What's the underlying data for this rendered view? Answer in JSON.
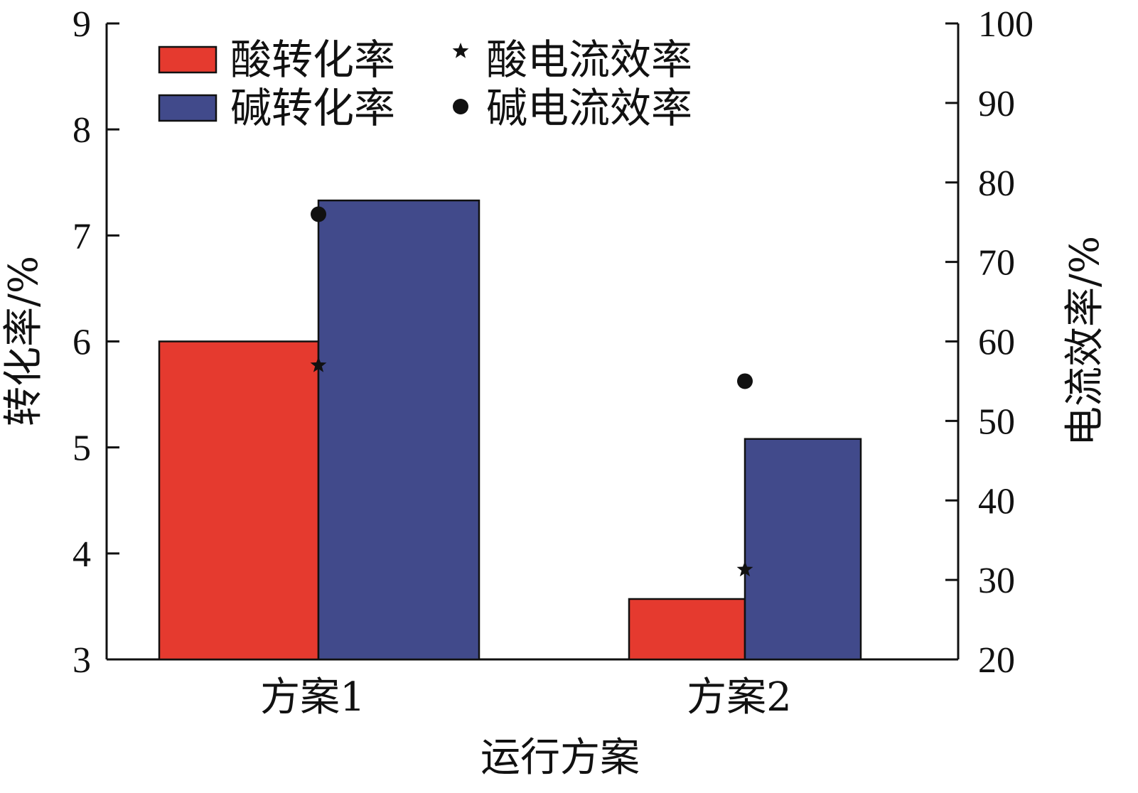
{
  "chart_data": {
    "type": "bar",
    "title": "",
    "xlabel": "运行方案",
    "ylabel_left": "转化率/%",
    "ylabel_right": "电流效率/%",
    "categories": [
      "方案1",
      "方案2"
    ],
    "ylim_left": [
      3,
      9
    ],
    "yticks_left": [
      3,
      4,
      5,
      6,
      7,
      8,
      9
    ],
    "ylim_right": [
      20,
      100
    ],
    "yticks_right": [
      20,
      30,
      40,
      50,
      60,
      70,
      80,
      90,
      100
    ],
    "series": [
      {
        "name": "酸转化率",
        "kind": "bar",
        "axis": "left",
        "color": "#e53a2f",
        "values": [
          6.0,
          3.57
        ]
      },
      {
        "name": "碱转化率",
        "kind": "bar",
        "axis": "left",
        "color": "#414a8b",
        "values": [
          7.33,
          5.08
        ]
      },
      {
        "name": "酸电流效率",
        "kind": "marker",
        "marker": "star",
        "axis": "right",
        "color": "#111111",
        "values": [
          57.0,
          31.3
        ]
      },
      {
        "name": "碱电流效率",
        "kind": "marker",
        "marker": "circle",
        "axis": "right",
        "color": "#111111",
        "values": [
          76.0,
          55.0
        ]
      }
    ],
    "legend_position": "top-left"
  }
}
